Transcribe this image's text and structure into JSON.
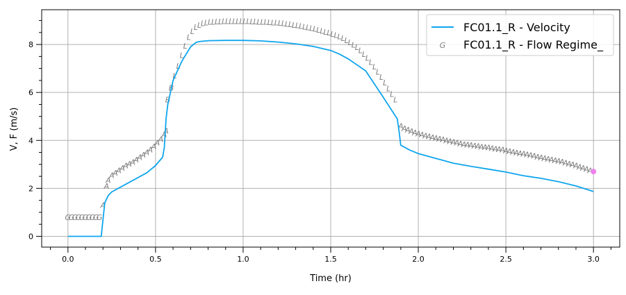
{
  "colors": {
    "velocity": "#0ea5ed",
    "regime": "#808080",
    "marker": "#ee82ee",
    "grid": "#b0b0b0"
  },
  "chart_data": {
    "type": "line",
    "xlabel": "Time (hr)",
    "ylabel": "V, F (m/s)",
    "xlim": [
      -0.15,
      3.15
    ],
    "ylim": [
      -0.45,
      9.45
    ],
    "grid": true,
    "legend_position": "top-right",
    "x_ticks": [
      {
        "value": 0.0,
        "label": "0.0"
      },
      {
        "value": 0.5,
        "label": "0.5"
      },
      {
        "value": 1.0,
        "label": "1.0"
      },
      {
        "value": 1.5,
        "label": "1.5"
      },
      {
        "value": 2.0,
        "label": "2.0"
      },
      {
        "value": 2.5,
        "label": "2.5"
      },
      {
        "value": 3.0,
        "label": "3.0"
      }
    ],
    "y_ticks": [
      {
        "value": 0,
        "label": "0"
      },
      {
        "value": 2,
        "label": "2"
      },
      {
        "value": 4,
        "label": "4"
      },
      {
        "value": 6,
        "label": "6"
      },
      {
        "value": 8,
        "label": "8"
      }
    ],
    "legend": [
      {
        "label": "FC01.1_R - Velocity",
        "symbol": "line"
      },
      {
        "label": "FC01.1_R - Flow Regime_",
        "symbol": "G"
      }
    ],
    "velocity": {
      "name": "FC01.1_R - Velocity",
      "x": [
        0.0,
        0.19,
        0.21,
        0.23,
        0.25,
        0.3,
        0.35,
        0.4,
        0.45,
        0.5,
        0.54,
        0.55,
        0.56,
        0.57,
        0.6,
        0.65,
        0.7,
        0.73,
        0.75,
        0.8,
        0.9,
        1.0,
        1.1,
        1.2,
        1.3,
        1.4,
        1.5,
        1.55,
        1.6,
        1.7,
        1.8,
        1.88,
        1.89,
        1.9,
        1.95,
        2.0,
        2.1,
        2.2,
        2.3,
        2.4,
        2.5,
        2.6,
        2.7,
        2.8,
        2.9,
        3.0
      ],
      "y": [
        0.0,
        0.0,
        1.4,
        1.7,
        1.85,
        2.05,
        2.25,
        2.45,
        2.65,
        2.95,
        3.3,
        3.7,
        4.9,
        5.5,
        6.5,
        7.3,
        7.9,
        8.08,
        8.12,
        8.16,
        8.17,
        8.17,
        8.15,
        8.1,
        8.03,
        7.92,
        7.75,
        7.6,
        7.4,
        6.9,
        5.8,
        4.9,
        4.4,
        3.8,
        3.6,
        3.45,
        3.25,
        3.05,
        2.92,
        2.8,
        2.68,
        2.53,
        2.42,
        2.28,
        2.1,
        1.87
      ]
    },
    "flow_regime": {
      "name": "FC01.1_R - Flow Regime_",
      "points": [
        {
          "x": 0.0,
          "y": 0.8,
          "label": "G"
        },
        {
          "x": 0.02,
          "y": 0.8,
          "label": "G"
        },
        {
          "x": 0.04,
          "y": 0.8,
          "label": "G"
        },
        {
          "x": 0.06,
          "y": 0.8,
          "label": "G"
        },
        {
          "x": 0.08,
          "y": 0.8,
          "label": "G"
        },
        {
          "x": 0.1,
          "y": 0.8,
          "label": "G"
        },
        {
          "x": 0.12,
          "y": 0.8,
          "label": "G"
        },
        {
          "x": 0.14,
          "y": 0.8,
          "label": "G"
        },
        {
          "x": 0.16,
          "y": 0.8,
          "label": "G"
        },
        {
          "x": 0.18,
          "y": 0.8,
          "label": "G"
        },
        {
          "x": 0.2,
          "y": 1.3,
          "label": "A"
        },
        {
          "x": 0.22,
          "y": 2.1,
          "label": "A"
        },
        {
          "x": 0.23,
          "y": 2.35,
          "label": "A"
        },
        {
          "x": 0.25,
          "y": 2.55,
          "label": "A"
        },
        {
          "x": 0.27,
          "y": 2.65,
          "label": "A"
        },
        {
          "x": 0.29,
          "y": 2.75,
          "label": "A"
        },
        {
          "x": 0.31,
          "y": 2.85,
          "label": "A"
        },
        {
          "x": 0.33,
          "y": 2.95,
          "label": "A"
        },
        {
          "x": 0.35,
          "y": 3.02,
          "label": "A"
        },
        {
          "x": 0.37,
          "y": 3.1,
          "label": "A"
        },
        {
          "x": 0.39,
          "y": 3.2,
          "label": "A"
        },
        {
          "x": 0.41,
          "y": 3.3,
          "label": "A"
        },
        {
          "x": 0.43,
          "y": 3.4,
          "label": "A"
        },
        {
          "x": 0.45,
          "y": 3.5,
          "label": "A"
        },
        {
          "x": 0.47,
          "y": 3.62,
          "label": "A"
        },
        {
          "x": 0.49,
          "y": 3.75,
          "label": "A"
        },
        {
          "x": 0.51,
          "y": 3.9,
          "label": "A"
        },
        {
          "x": 0.53,
          "y": 4.05,
          "label": "A"
        },
        {
          "x": 0.55,
          "y": 4.25,
          "label": "A"
        },
        {
          "x": 0.56,
          "y": 4.4,
          "label": "A"
        },
        {
          "x": 0.57,
          "y": 5.7,
          "label": "B"
        },
        {
          "x": 0.59,
          "y": 6.2,
          "label": "B"
        },
        {
          "x": 0.61,
          "y": 6.7,
          "label": "L"
        },
        {
          "x": 0.63,
          "y": 7.1,
          "label": "L"
        },
        {
          "x": 0.65,
          "y": 7.55,
          "label": "L"
        },
        {
          "x": 0.67,
          "y": 7.95,
          "label": "L"
        },
        {
          "x": 0.69,
          "y": 8.3,
          "label": "L"
        },
        {
          "x": 0.71,
          "y": 8.55,
          "label": "L"
        },
        {
          "x": 0.73,
          "y": 8.72,
          "label": "L"
        },
        {
          "x": 0.75,
          "y": 8.82,
          "label": "L"
        },
        {
          "x": 0.77,
          "y": 8.88,
          "label": "L"
        },
        {
          "x": 0.79,
          "y": 8.92,
          "label": "L"
        },
        {
          "x": 0.81,
          "y": 8.94,
          "label": "L"
        },
        {
          "x": 0.83,
          "y": 8.95,
          "label": "L"
        },
        {
          "x": 0.85,
          "y": 8.96,
          "label": "L"
        },
        {
          "x": 0.87,
          "y": 8.96,
          "label": "L"
        },
        {
          "x": 0.89,
          "y": 8.97,
          "label": "L"
        },
        {
          "x": 0.91,
          "y": 8.97,
          "label": "L"
        },
        {
          "x": 0.93,
          "y": 8.97,
          "label": "L"
        },
        {
          "x": 0.95,
          "y": 8.97,
          "label": "L"
        },
        {
          "x": 0.97,
          "y": 8.97,
          "label": "L"
        },
        {
          "x": 0.99,
          "y": 8.97,
          "label": "L"
        },
        {
          "x": 1.01,
          "y": 8.97,
          "label": "L"
        },
        {
          "x": 1.03,
          "y": 8.97,
          "label": "L"
        },
        {
          "x": 1.05,
          "y": 8.96,
          "label": "L"
        },
        {
          "x": 1.07,
          "y": 8.96,
          "label": "L"
        },
        {
          "x": 1.09,
          "y": 8.95,
          "label": "L"
        },
        {
          "x": 1.11,
          "y": 8.95,
          "label": "L"
        },
        {
          "x": 1.13,
          "y": 8.94,
          "label": "L"
        },
        {
          "x": 1.15,
          "y": 8.93,
          "label": "L"
        },
        {
          "x": 1.17,
          "y": 8.92,
          "label": "L"
        },
        {
          "x": 1.19,
          "y": 8.91,
          "label": "L"
        },
        {
          "x": 1.21,
          "y": 8.9,
          "label": "L"
        },
        {
          "x": 1.23,
          "y": 8.88,
          "label": "L"
        },
        {
          "x": 1.25,
          "y": 8.86,
          "label": "L"
        },
        {
          "x": 1.27,
          "y": 8.84,
          "label": "L"
        },
        {
          "x": 1.29,
          "y": 8.82,
          "label": "L"
        },
        {
          "x": 1.31,
          "y": 8.8,
          "label": "L"
        },
        {
          "x": 1.33,
          "y": 8.77,
          "label": "L"
        },
        {
          "x": 1.35,
          "y": 8.74,
          "label": "L"
        },
        {
          "x": 1.37,
          "y": 8.71,
          "label": "L"
        },
        {
          "x": 1.39,
          "y": 8.68,
          "label": "L"
        },
        {
          "x": 1.41,
          "y": 8.65,
          "label": "L"
        },
        {
          "x": 1.43,
          "y": 8.61,
          "label": "L"
        },
        {
          "x": 1.45,
          "y": 8.57,
          "label": "L"
        },
        {
          "x": 1.47,
          "y": 8.53,
          "label": "L"
        },
        {
          "x": 1.49,
          "y": 8.49,
          "label": "L"
        },
        {
          "x": 1.51,
          "y": 8.44,
          "label": "L"
        },
        {
          "x": 1.53,
          "y": 8.39,
          "label": "L"
        },
        {
          "x": 1.55,
          "y": 8.33,
          "label": "L"
        },
        {
          "x": 1.57,
          "y": 8.26,
          "label": "L"
        },
        {
          "x": 1.59,
          "y": 8.18,
          "label": "L"
        },
        {
          "x": 1.61,
          "y": 8.09,
          "label": "L"
        },
        {
          "x": 1.63,
          "y": 7.99,
          "label": "L"
        },
        {
          "x": 1.65,
          "y": 7.88,
          "label": "L"
        },
        {
          "x": 1.67,
          "y": 7.75,
          "label": "L"
        },
        {
          "x": 1.69,
          "y": 7.6,
          "label": "L"
        },
        {
          "x": 1.71,
          "y": 7.44,
          "label": "L"
        },
        {
          "x": 1.73,
          "y": 7.26,
          "label": "L"
        },
        {
          "x": 1.75,
          "y": 7.07,
          "label": "L"
        },
        {
          "x": 1.77,
          "y": 6.86,
          "label": "L"
        },
        {
          "x": 1.79,
          "y": 6.64,
          "label": "L"
        },
        {
          "x": 1.81,
          "y": 6.41,
          "label": "L"
        },
        {
          "x": 1.83,
          "y": 6.17,
          "label": "L"
        },
        {
          "x": 1.85,
          "y": 5.93,
          "label": "L"
        },
        {
          "x": 1.87,
          "y": 5.7,
          "label": "L"
        },
        {
          "x": 1.9,
          "y": 4.6,
          "label": "A"
        },
        {
          "x": 1.92,
          "y": 4.5,
          "label": "A"
        },
        {
          "x": 1.94,
          "y": 4.44,
          "label": "A"
        },
        {
          "x": 1.96,
          "y": 4.38,
          "label": "A"
        },
        {
          "x": 1.98,
          "y": 4.33,
          "label": "A"
        },
        {
          "x": 2.0,
          "y": 4.28,
          "label": "A"
        },
        {
          "x": 2.02,
          "y": 4.24,
          "label": "A"
        },
        {
          "x": 2.04,
          "y": 4.2,
          "label": "A"
        },
        {
          "x": 2.06,
          "y": 4.17,
          "label": "A"
        },
        {
          "x": 2.08,
          "y": 4.13,
          "label": "A"
        },
        {
          "x": 2.1,
          "y": 4.1,
          "label": "A"
        },
        {
          "x": 2.12,
          "y": 4.06,
          "label": "A"
        },
        {
          "x": 2.14,
          "y": 4.03,
          "label": "A"
        },
        {
          "x": 2.16,
          "y": 4.0,
          "label": "A"
        },
        {
          "x": 2.18,
          "y": 3.97,
          "label": "A"
        },
        {
          "x": 2.2,
          "y": 3.94,
          "label": "A"
        },
        {
          "x": 2.22,
          "y": 3.9,
          "label": "A"
        },
        {
          "x": 2.24,
          "y": 3.87,
          "label": "A"
        },
        {
          "x": 2.26,
          "y": 3.84,
          "label": "A"
        },
        {
          "x": 2.28,
          "y": 3.82,
          "label": "A"
        },
        {
          "x": 2.3,
          "y": 3.8,
          "label": "A"
        },
        {
          "x": 2.32,
          "y": 3.78,
          "label": "A"
        },
        {
          "x": 2.34,
          "y": 3.76,
          "label": "A"
        },
        {
          "x": 2.36,
          "y": 3.74,
          "label": "A"
        },
        {
          "x": 2.38,
          "y": 3.72,
          "label": "A"
        },
        {
          "x": 2.4,
          "y": 3.7,
          "label": "A"
        },
        {
          "x": 2.42,
          "y": 3.67,
          "label": "A"
        },
        {
          "x": 2.44,
          "y": 3.65,
          "label": "A"
        },
        {
          "x": 2.46,
          "y": 3.63,
          "label": "A"
        },
        {
          "x": 2.48,
          "y": 3.61,
          "label": "A"
        },
        {
          "x": 2.5,
          "y": 3.58,
          "label": "A"
        },
        {
          "x": 2.52,
          "y": 3.55,
          "label": "A"
        },
        {
          "x": 2.54,
          "y": 3.52,
          "label": "A"
        },
        {
          "x": 2.56,
          "y": 3.49,
          "label": "A"
        },
        {
          "x": 2.58,
          "y": 3.46,
          "label": "A"
        },
        {
          "x": 2.6,
          "y": 3.44,
          "label": "A"
        },
        {
          "x": 2.62,
          "y": 3.41,
          "label": "A"
        },
        {
          "x": 2.64,
          "y": 3.38,
          "label": "A"
        },
        {
          "x": 2.66,
          "y": 3.35,
          "label": "A"
        },
        {
          "x": 2.68,
          "y": 3.32,
          "label": "A"
        },
        {
          "x": 2.7,
          "y": 3.29,
          "label": "A"
        },
        {
          "x": 2.72,
          "y": 3.26,
          "label": "A"
        },
        {
          "x": 2.74,
          "y": 3.23,
          "label": "A"
        },
        {
          "x": 2.76,
          "y": 3.2,
          "label": "A"
        },
        {
          "x": 2.78,
          "y": 3.17,
          "label": "A"
        },
        {
          "x": 2.8,
          "y": 3.14,
          "label": "A"
        },
        {
          "x": 2.82,
          "y": 3.11,
          "label": "A"
        },
        {
          "x": 2.84,
          "y": 3.07,
          "label": "A"
        },
        {
          "x": 2.86,
          "y": 3.03,
          "label": "A"
        },
        {
          "x": 2.88,
          "y": 2.99,
          "label": "A"
        },
        {
          "x": 2.9,
          "y": 2.95,
          "label": "A"
        },
        {
          "x": 2.92,
          "y": 2.9,
          "label": "A"
        },
        {
          "x": 2.94,
          "y": 2.85,
          "label": "A"
        },
        {
          "x": 2.96,
          "y": 2.8,
          "label": "A"
        },
        {
          "x": 2.98,
          "y": 2.75,
          "label": "A"
        }
      ]
    },
    "end_marker": {
      "x": 3.0,
      "y": 2.7
    }
  }
}
